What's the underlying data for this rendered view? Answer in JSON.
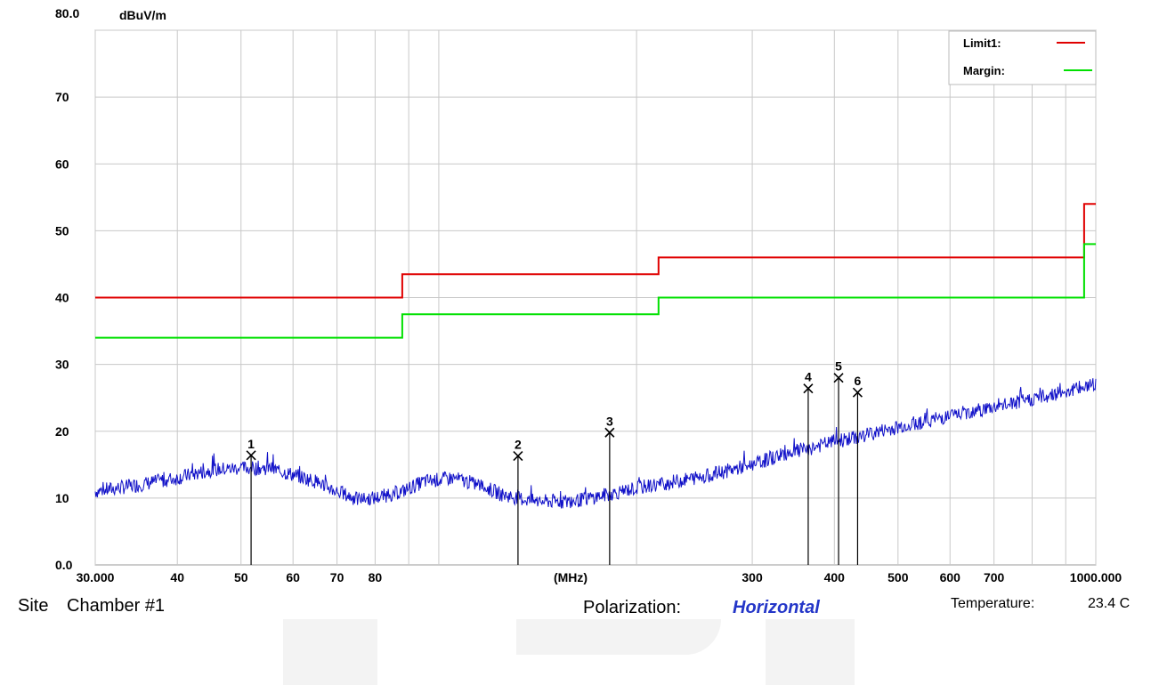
{
  "chart_data": {
    "type": "line",
    "x_scale": "log",
    "x_range": [
      30,
      1000
    ],
    "y_range": [
      0,
      80
    ],
    "y_unit_label": "dBuV/m",
    "x_unit_label": "(MHz)",
    "y_ticks": [
      "0.0",
      "10",
      "20",
      "30",
      "40",
      "50",
      "60",
      "70",
      "80.0"
    ],
    "y_tick_values": [
      0,
      10,
      20,
      30,
      40,
      50,
      60,
      70,
      80
    ],
    "x_ticks": [
      {
        "v": 30,
        "label": "30.000"
      },
      {
        "v": 40,
        "label": "40"
      },
      {
        "v": 50,
        "label": "50"
      },
      {
        "v": 60,
        "label": "60"
      },
      {
        "v": 70,
        "label": "70"
      },
      {
        "v": 80,
        "label": "80"
      },
      {
        "v": 300,
        "label": "300"
      },
      {
        "v": 400,
        "label": "400"
      },
      {
        "v": 500,
        "label": "500"
      },
      {
        "v": 600,
        "label": "600"
      },
      {
        "v": 700,
        "label": "700"
      },
      {
        "v": 1000,
        "label": "1000.000"
      }
    ],
    "grid_x": [
      30,
      40,
      50,
      60,
      70,
      80,
      90,
      100,
      200,
      300,
      400,
      500,
      600,
      700,
      800,
      900,
      1000
    ],
    "grid_y": [
      10,
      20,
      30,
      40,
      50,
      60,
      70,
      80
    ],
    "grid": true,
    "legend_position": "top-right",
    "series": [
      {
        "name": "Limit1:",
        "color": "#e00000",
        "type": "step",
        "points": [
          [
            30,
            40
          ],
          [
            88,
            40
          ],
          [
            88,
            43.5
          ],
          [
            216,
            43.5
          ],
          [
            216,
            46
          ],
          [
            960,
            46
          ],
          [
            960,
            54
          ],
          [
            1000,
            54
          ]
        ]
      },
      {
        "name": "Margin:",
        "color": "#00e000",
        "type": "step",
        "points": [
          [
            30,
            34
          ],
          [
            88,
            34
          ],
          [
            88,
            37.5
          ],
          [
            216,
            37.5
          ],
          [
            216,
            40
          ],
          [
            960,
            40
          ],
          [
            960,
            48
          ],
          [
            1000,
            48
          ]
        ]
      },
      {
        "color": "#1010c8",
        "type": "trace",
        "points": [
          [
            30,
            11
          ],
          [
            35,
            12
          ],
          [
            40,
            13
          ],
          [
            45,
            14.2
          ],
          [
            50,
            14.5
          ],
          [
            55,
            14.5
          ],
          [
            60,
            13.5
          ],
          [
            65,
            12.5
          ],
          [
            70,
            11
          ],
          [
            75,
            9.8
          ],
          [
            80,
            10
          ],
          [
            88,
            11
          ],
          [
            95,
            12.5
          ],
          [
            105,
            13
          ],
          [
            115,
            12
          ],
          [
            125,
            10.5
          ],
          [
            140,
            9.5
          ],
          [
            160,
            9.5
          ],
          [
            180,
            10.5
          ],
          [
            200,
            11.5
          ],
          [
            230,
            12.5
          ],
          [
            260,
            13.5
          ],
          [
            300,
            15
          ],
          [
            340,
            16.8
          ],
          [
            370,
            17.5
          ],
          [
            400,
            18.5
          ],
          [
            430,
            19
          ],
          [
            470,
            20
          ],
          [
            520,
            21
          ],
          [
            580,
            22
          ],
          [
            650,
            23
          ],
          [
            720,
            23.8
          ],
          [
            800,
            24.8
          ],
          [
            900,
            26
          ],
          [
            1000,
            27
          ]
        ]
      }
    ],
    "markers": [
      {
        "label": "1",
        "x": 51.8,
        "y": 16.4
      },
      {
        "label": "2",
        "x": 132,
        "y": 16.3
      },
      {
        "label": "3",
        "x": 182,
        "y": 19.8
      },
      {
        "label": "4",
        "x": 365,
        "y": 26.4
      },
      {
        "label": "5",
        "x": 406,
        "y": 28.0
      },
      {
        "label": "6",
        "x": 434,
        "y": 25.8
      }
    ]
  },
  "footer": {
    "site_label": "Site",
    "site_value": "Chamber #1",
    "polarization_label": "Polarization:",
    "polarization_value": "Horizontal",
    "temperature_label": "Temperature:",
    "temperature_value": "23.4 C"
  }
}
